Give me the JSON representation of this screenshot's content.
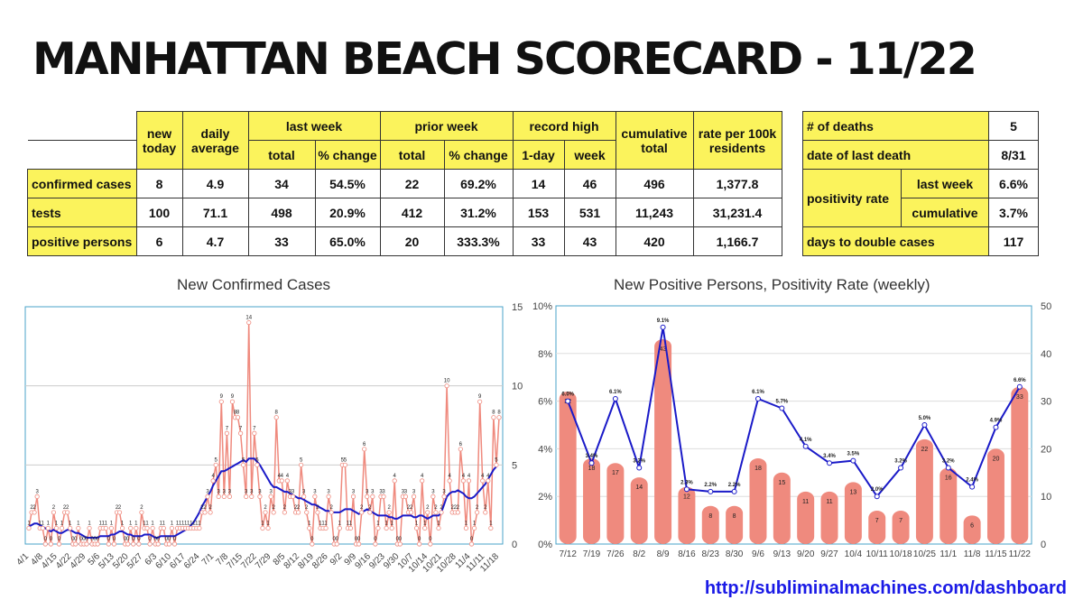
{
  "title": "MANHATTAN BEACH SCORECARD - 11/22",
  "table": {
    "headers": {
      "new_today": "new today",
      "daily_average": "daily average",
      "last_week": "last week",
      "prior_week": "prior week",
      "record_high": "record high",
      "cumulative_total": "cumulative total",
      "rate": "rate per 100k residents",
      "total": "total",
      "pct_change": "% change",
      "one_day": "1-day",
      "week": "week"
    },
    "rows": [
      {
        "label": "confirmed cases",
        "values": [
          "8",
          "4.9",
          "34",
          "54.5%",
          "22",
          "69.2%",
          "14",
          "46",
          "496",
          "1,377.8"
        ]
      },
      {
        "label": "tests",
        "values": [
          "100",
          "71.1",
          "498",
          "20.9%",
          "412",
          "31.2%",
          "153",
          "531",
          "11,243",
          "31,231.4"
        ]
      },
      {
        "label": "positive persons",
        "values": [
          "6",
          "4.7",
          "33",
          "65.0%",
          "20",
          "333.3%",
          "33",
          "43",
          "420",
          "1,166.7"
        ]
      }
    ]
  },
  "side": {
    "deaths_label": "# of deaths",
    "deaths_value": "5",
    "last_death_label": "date of last death",
    "last_death_value": "8/31",
    "positivity_label": "positivity rate",
    "last_week_label": "last week",
    "last_week_value": "6.6%",
    "cumulative_label": "cumulative",
    "cumulative_value": "3.7%",
    "double_label": "days to double cases",
    "double_value": "117"
  },
  "url": "http://subliminalmachines.com/dashboard",
  "colors": {
    "bar": "#ef8a7e",
    "line": "#1a1ac8",
    "axis": "#4aa3c8",
    "highlight": "#fbf35c"
  },
  "chart_data": [
    {
      "type": "line",
      "title": "New Confirmed Cases",
      "ylim": [
        0,
        15
      ],
      "yticks": [
        0,
        5,
        10,
        15
      ],
      "xticks": [
        "4/1",
        "4/8",
        "4/15",
        "4/22",
        "4/29",
        "5/6",
        "5/13",
        "5/20",
        "5/27",
        "6/3",
        "6/10",
        "6/17",
        "6/24",
        "7/1",
        "7/8",
        "7/15",
        "7/22",
        "7/29",
        "8/5",
        "8/12",
        "8/19",
        "8/26",
        "9/2",
        "9/9",
        "9/16",
        "9/23",
        "9/30",
        "10/7",
        "10/14",
        "10/21",
        "10/28",
        "11/4",
        "11/11",
        "11/18"
      ],
      "series": [
        {
          "values": [
            1,
            2,
            2,
            3,
            1,
            1,
            0,
            1,
            0,
            2,
            1,
            0,
            1,
            2,
            2,
            1,
            0,
            0,
            1,
            0,
            0,
            0,
            1,
            0,
            0,
            0,
            1,
            1,
            1,
            0,
            1,
            0,
            2,
            2,
            1,
            0,
            0,
            1,
            0,
            1,
            0,
            2,
            1,
            1,
            0,
            1,
            0,
            0,
            1,
            1,
            0,
            0,
            1,
            0,
            1,
            1,
            1,
            1,
            1,
            1,
            1,
            1,
            1,
            2,
            2,
            3,
            2,
            4,
            5,
            3,
            9,
            3,
            7,
            3,
            9,
            8,
            8,
            7,
            5,
            3,
            14,
            3,
            7,
            5,
            3,
            1,
            2,
            1,
            3,
            2,
            8,
            4,
            4,
            2,
            4,
            3,
            3,
            2,
            2,
            5,
            3,
            2,
            1,
            0,
            3,
            2,
            1,
            1,
            1,
            3,
            2,
            0,
            0,
            1,
            5,
            5,
            1,
            1,
            3,
            0,
            0,
            2,
            6,
            3,
            2,
            3,
            0,
            1,
            3,
            3,
            1,
            2,
            1,
            4,
            0,
            0,
            3,
            3,
            2,
            2,
            3,
            1,
            0,
            4,
            1,
            2,
            0,
            3,
            2,
            1,
            2,
            3,
            10,
            4,
            2,
            2,
            2,
            6,
            4,
            1,
            4,
            0,
            1,
            2,
            9,
            4,
            2,
            4,
            1,
            8,
            5,
            8
          ]
        },
        {
          "values": [
            1.1,
            1.2,
            1.3,
            1.3,
            1.2,
            1.1,
            1.0,
            0.9,
            0.8,
            0.9,
            0.8,
            0.7,
            0.7,
            0.8,
            0.9,
            0.9,
            0.8,
            0.7,
            0.7,
            0.6,
            0.5,
            0.4,
            0.4,
            0.4,
            0.4,
            0.4,
            0.5,
            0.5,
            0.5,
            0.5,
            0.6,
            0.6,
            0.7,
            0.8,
            0.8,
            0.7,
            0.6,
            0.6,
            0.5,
            0.5,
            0.5,
            0.5,
            0.6,
            0.6,
            0.6,
            0.5,
            0.4,
            0.4,
            0.5,
            0.5,
            0.5,
            0.5,
            0.5,
            0.5,
            0.6,
            0.7,
            0.8,
            0.9,
            1.0,
            1.2,
            1.4,
            1.7,
            2.0,
            2.4,
            2.7,
            3.0,
            3.3,
            3.7,
            4.0,
            4.3,
            4.6,
            4.6,
            4.7,
            4.8,
            4.9,
            5.0,
            5.1,
            5.2,
            5.3,
            5.2,
            5.4,
            5.4,
            5.4,
            5.2,
            5.0,
            4.7,
            4.4,
            4.1,
            3.8,
            3.6,
            3.6,
            3.5,
            3.4,
            3.3,
            3.3,
            3.2,
            3.1,
            3.0,
            2.9,
            2.9,
            2.8,
            2.7,
            2.6,
            2.5,
            2.5,
            2.4,
            2.3,
            2.2,
            2.1,
            2.1,
            2.0,
            2.0,
            2.0,
            2.0,
            2.1,
            2.2,
            2.2,
            2.2,
            2.1,
            2.0,
            1.9,
            2.0,
            2.1,
            2.2,
            2.1,
            2.0,
            1.9,
            1.8,
            1.8,
            1.8,
            1.8,
            1.7,
            1.7,
            1.6,
            1.6,
            1.7,
            1.8,
            1.8,
            1.8,
            1.8,
            1.7,
            1.7,
            1.8,
            1.8,
            1.7,
            1.6,
            1.7,
            1.8,
            1.8,
            1.8,
            2.0,
            2.5,
            3.0,
            3.2,
            3.3,
            3.3,
            3.4,
            3.3,
            3.2,
            3.0,
            2.9,
            2.9,
            3.0,
            3.2,
            3.4,
            3.6,
            3.8,
            4.1,
            4.4,
            4.7,
            4.9
          ]
        }
      ]
    },
    {
      "type": "bar",
      "title": "New Positive Persons, Positivity Rate (weekly)",
      "categories": [
        "7/12",
        "7/19",
        "7/26",
        "8/2",
        "8/9",
        "8/16",
        "8/23",
        "8/30",
        "9/6",
        "9/13",
        "9/20",
        "9/27",
        "10/4",
        "10/11",
        "10/18",
        "10/25",
        "11/1",
        "11/8",
        "11/15",
        "11/22"
      ],
      "ylim_left": [
        0,
        10
      ],
      "yticks_left": [
        "0%",
        "2%",
        "4%",
        "6%",
        "8%",
        "10%"
      ],
      "ylim_right": [
        0,
        50
      ],
      "yticks_right": [
        0,
        10,
        20,
        30,
        40,
        50
      ],
      "series": [
        {
          "type": "bar",
          "values": [
            32,
            18,
            17,
            14,
            43,
            12,
            8,
            8,
            18,
            15,
            11,
            11,
            13,
            7,
            7,
            22,
            16,
            6,
            20,
            33
          ]
        },
        {
          "type": "line",
          "values": [
            6.0,
            3.4,
            6.1,
            3.2,
            9.1,
            2.3,
            2.2,
            2.2,
            6.1,
            5.7,
            4.1,
            3.4,
            3.5,
            2.0,
            3.2,
            5.0,
            3.2,
            2.4,
            4.9,
            6.6
          ],
          "labels": [
            "6.0%",
            "3.4%",
            "6.1%",
            "3.2%",
            "9.1%",
            "2.3%",
            "2.2%",
            "2.2%",
            "6.1%",
            "5.7%",
            "4.1%",
            "3.4%",
            "3.5%",
            "2.0%",
            "3.2%",
            "5.0%",
            "3.2%",
            "2.4%",
            "4.9%",
            "6.6%"
          ]
        }
      ]
    }
  ]
}
